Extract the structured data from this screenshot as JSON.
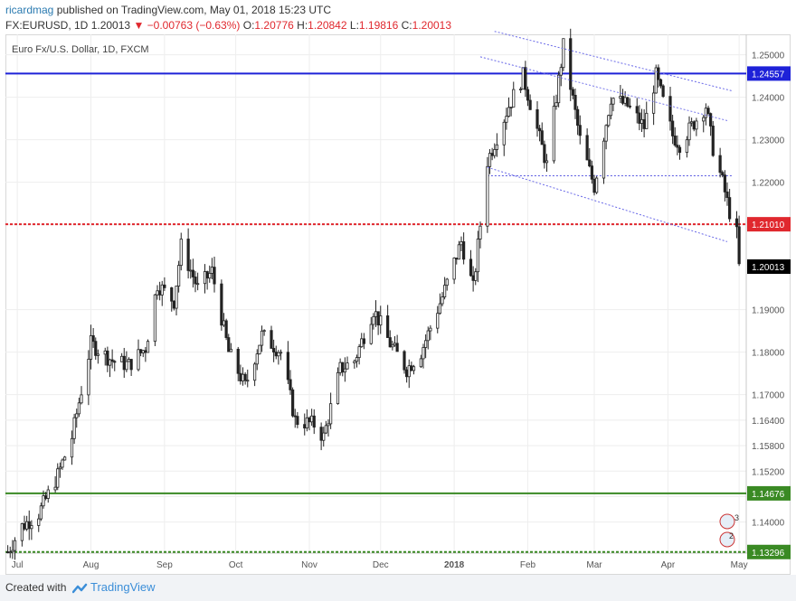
{
  "header": {
    "publisher": "ricardmag",
    "published_text": "published on TradingView.com, May 01, 2018 15:23 UTC",
    "symbol": "FX:EURUSD, 1D",
    "last": "1.20013",
    "change": "▼ −0.00763 (−0.63%)",
    "open_label": "O:",
    "open": "1.20776",
    "high_label": "H:",
    "high": "1.20842",
    "low_label": "L:",
    "low": "1.19816",
    "close_label": "C:",
    "close": "1.20013"
  },
  "footer": {
    "created_with": "Created with",
    "brand": "TradingView"
  },
  "chart_data": {
    "type": "candlestick",
    "title": "Euro Fx/U.S. Dollar, 1D, FXCM",
    "ylim": [
      1.1327,
      1.2548
    ],
    "y_ticks": [
      1.25,
      1.24,
      1.23,
      1.22,
      1.21,
      1.19,
      1.18,
      1.17,
      1.164,
      1.158,
      1.152,
      1.146,
      1.14
    ],
    "x_ticks": [
      "Jul",
      "Aug",
      "Sep",
      "Oct",
      "Nov",
      "Dec",
      "2018",
      "Feb",
      "Mar",
      "Apr",
      "May"
    ],
    "x_tick_dates": [
      "2017-07-01",
      "2017-08-01",
      "2017-09-01",
      "2017-10-01",
      "2017-11-01",
      "2017-12-01",
      "2018-01-01",
      "2018-02-01",
      "2018-03-01",
      "2018-04-01",
      "2018-05-01"
    ],
    "x_range": [
      "2017-06-26",
      "2018-05-04"
    ],
    "price_labels": [
      {
        "value": 1.24557,
        "text": "1.24557",
        "color": "#1e22d8"
      },
      {
        "value": 1.2101,
        "text": "1.21010",
        "color": "#e0282e"
      },
      {
        "value": 1.20013,
        "text": "1.20013",
        "color": "#000000"
      },
      {
        "value": 1.14676,
        "text": "1.14676",
        "color": "#3a8a24"
      },
      {
        "value": 1.13296,
        "text": "1.13296",
        "color": "#3a8a24"
      }
    ],
    "horizontal_lines": [
      {
        "value": 1.24557,
        "style": "solid",
        "color": "#1e22d8"
      },
      {
        "value": 1.2101,
        "style": "dotted",
        "color": "#e0282e"
      },
      {
        "value": 1.14676,
        "style": "solid",
        "color": "#3a8a24"
      },
      {
        "value": 1.13296,
        "style": "dotted",
        "color": "#3a8a24"
      },
      {
        "value": 1.2215,
        "style": "dotted-short",
        "color": "#5a5ae0",
        "from": "2018-01-15",
        "to": "2018-04-28"
      }
    ],
    "channel_lines": [
      {
        "from": [
          "2018-01-18",
          1.2555
        ],
        "to": [
          "2018-04-28",
          1.2415
        ]
      },
      {
        "from": [
          "2018-01-12",
          1.2495
        ],
        "to": [
          "2018-04-26",
          1.2345
        ]
      },
      {
        "from": [
          "2018-01-15",
          1.2235
        ],
        "to": [
          "2018-04-26",
          1.206
        ]
      }
    ],
    "anchors": [
      [
        "2017-06-27",
        1.133
      ],
      [
        "2017-07-03",
        1.139
      ],
      [
        "2017-07-10",
        1.142
      ],
      [
        "2017-07-18",
        1.151
      ],
      [
        "2017-07-24",
        1.16
      ],
      [
        "2017-08-01",
        1.182
      ],
      [
        "2017-08-10",
        1.178
      ],
      [
        "2017-08-17",
        1.177
      ],
      [
        "2017-08-24",
        1.181
      ],
      [
        "2017-08-29",
        1.196
      ],
      [
        "2017-09-05",
        1.192
      ],
      [
        "2017-09-08",
        1.205
      ],
      [
        "2017-09-15",
        1.195
      ],
      [
        "2017-09-21",
        1.199
      ],
      [
        "2017-09-28",
        1.18
      ],
      [
        "2017-10-05",
        1.172
      ],
      [
        "2017-10-12",
        1.184
      ],
      [
        "2017-10-20",
        1.18
      ],
      [
        "2017-10-26",
        1.164
      ],
      [
        "2017-11-03",
        1.163
      ],
      [
        "2017-11-07",
        1.16
      ],
      [
        "2017-11-14",
        1.176
      ],
      [
        "2017-11-20",
        1.178
      ],
      [
        "2017-11-28",
        1.19
      ],
      [
        "2017-12-05",
        1.182
      ],
      [
        "2017-12-12",
        1.176
      ],
      [
        "2017-12-18",
        1.18
      ],
      [
        "2017-12-27",
        1.193
      ],
      [
        "2018-01-04",
        1.206
      ],
      [
        "2018-01-09",
        1.195
      ],
      [
        "2018-01-15",
        1.225
      ],
      [
        "2018-01-24",
        1.238
      ],
      [
        "2018-01-30",
        1.245
      ],
      [
        "2018-02-09",
        1.224
      ],
      [
        "2018-02-16",
        1.252
      ],
      [
        "2018-02-23",
        1.23
      ],
      [
        "2018-03-01",
        1.219
      ],
      [
        "2018-03-08",
        1.24
      ],
      [
        "2018-03-15",
        1.238
      ],
      [
        "2018-03-22",
        1.233
      ],
      [
        "2018-03-27",
        1.245
      ],
      [
        "2018-04-03",
        1.231
      ],
      [
        "2018-04-06",
        1.229
      ],
      [
        "2018-04-12",
        1.234
      ],
      [
        "2018-04-17",
        1.238
      ],
      [
        "2018-04-20",
        1.228
      ],
      [
        "2018-04-24",
        1.22
      ],
      [
        "2018-04-27",
        1.213
      ],
      [
        "2018-04-30",
        1.2078
      ],
      [
        "2018-05-01",
        1.2001
      ]
    ]
  }
}
